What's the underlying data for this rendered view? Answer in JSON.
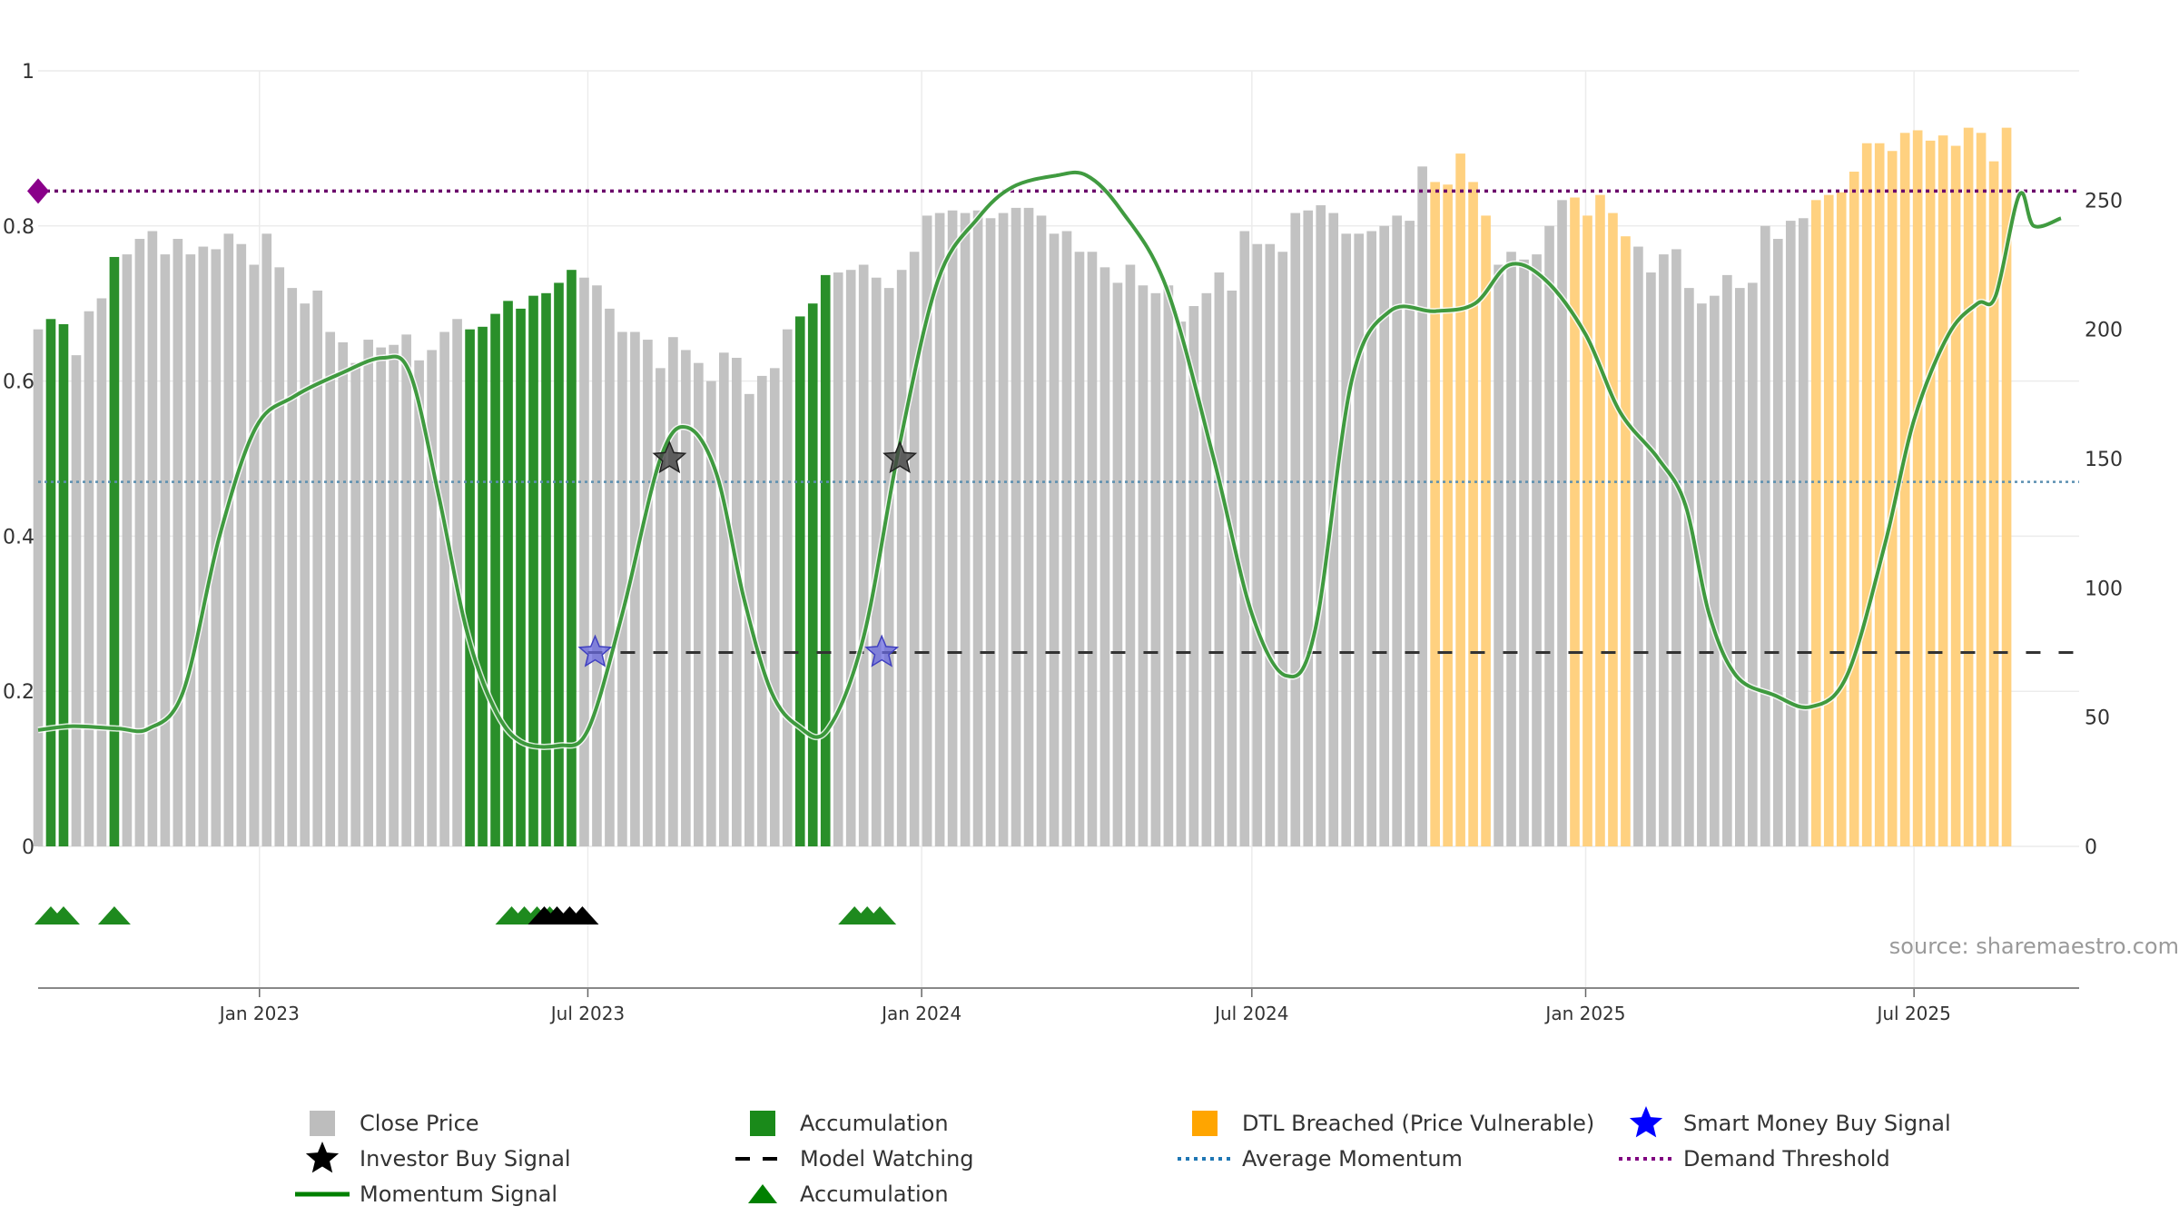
{
  "colors": {
    "close_price": "#c2c2c2",
    "accumulation": "#2a8f2a",
    "dtl_breached": "#ffd180",
    "momentum": "#1f8a1f",
    "model_watching": "#333333",
    "average_momentum": "#5b8fb0",
    "demand_threshold": "#6b006b",
    "smart_money": "#6a6adf",
    "investor": "#444444"
  },
  "source_text": "source: sharemaestro.com",
  "legend": [
    {
      "key": "close_price",
      "label": "Close Price",
      "symbol": "square",
      "color": "#bdbdbd"
    },
    {
      "key": "investor_buy",
      "label": "Investor Buy Signal",
      "symbol": "star",
      "color": "#000000"
    },
    {
      "key": "momentum",
      "label": "Momentum Signal",
      "symbol": "line",
      "color": "#008000"
    },
    {
      "key": "accumulation_bar",
      "label": "Accumulation",
      "symbol": "square",
      "color": "#1a8a1a"
    },
    {
      "key": "model_watching",
      "label": "Model Watching",
      "symbol": "dash",
      "color": "#000000"
    },
    {
      "key": "accumulation_marker",
      "label": "Accumulation",
      "symbol": "triangle",
      "color": "#008000"
    },
    {
      "key": "dtl_breached",
      "label": "DTL Breached (Price Vulnerable)",
      "symbol": "square",
      "color": "#ffa500"
    },
    {
      "key": "average_momentum",
      "label": "Average Momentum",
      "symbol": "dot",
      "color": "#1f77b4"
    },
    {
      "key": "smart_money",
      "label": "Smart Money Buy Signal",
      "symbol": "star",
      "color": "#0000ff"
    },
    {
      "key": "demand_threshold",
      "label": "Demand Threshold",
      "symbol": "dot",
      "color": "#800080"
    }
  ],
  "chart_data": {
    "type": "bar",
    "title": "",
    "left_axis": {
      "ylim": [
        0,
        1
      ],
      "ticks": [
        0,
        0.2,
        0.4,
        0.6,
        0.8,
        1
      ],
      "tick_labels": [
        "0",
        "0.2",
        "0.4",
        "0.6",
        "0.8",
        "1"
      ]
    },
    "right_axis": {
      "ylim": [
        0,
        300
      ],
      "ticks": [
        0,
        50,
        100,
        150,
        200,
        250
      ],
      "tick_labels": [
        "0",
        "50",
        "100",
        "150",
        "200",
        "250"
      ]
    },
    "x_range": [
      "2022-09-01",
      "2025-09-30"
    ],
    "x_ticks": [
      {
        "date": "2023-01-01",
        "label": "Jan 2023"
      },
      {
        "date": "2023-07-01",
        "label": "Jul 2023"
      },
      {
        "date": "2024-01-01",
        "label": "Jan 2024"
      },
      {
        "date": "2024-07-01",
        "label": "Jul 2024"
      },
      {
        "date": "2025-01-01",
        "label": "Jan 2025"
      },
      {
        "date": "2025-07-01",
        "label": "Jul 2025"
      }
    ],
    "series": [
      {
        "name": "Close Price",
        "axis": "right",
        "start_date": "2022-09-01",
        "interval_days": 7,
        "values": [
          200,
          204,
          202,
          190,
          207,
          212,
          228,
          229,
          235,
          238,
          229,
          235,
          229,
          232,
          231,
          237,
          233,
          225,
          237,
          224,
          216,
          210,
          215,
          199,
          195,
          187,
          196,
          193,
          194,
          198,
          188,
          192,
          199,
          204,
          200,
          201,
          206,
          211,
          208,
          213,
          214,
          218,
          223,
          220,
          217,
          208,
          199,
          199,
          196,
          185,
          197,
          192,
          187,
          180,
          191,
          189,
          175,
          182,
          185,
          200,
          205,
          210,
          221,
          222,
          223,
          225,
          220,
          216,
          223,
          230,
          244,
          245,
          246,
          245,
          246,
          243,
          245,
          247,
          247,
          244,
          237,
          238,
          230,
          230,
          224,
          218,
          225,
          217,
          214,
          217,
          203,
          209,
          214,
          222,
          215,
          238,
          233,
          233,
          230,
          245,
          246,
          248,
          245,
          237,
          237,
          238,
          240,
          244,
          242,
          263,
          257,
          256,
          268,
          257,
          244,
          225,
          230,
          227,
          229,
          240,
          250,
          251,
          244,
          252,
          245,
          236,
          232,
          222,
          229,
          231,
          216,
          210,
          213,
          221,
          216,
          218,
          240,
          235,
          242,
          243,
          250,
          252,
          253,
          261,
          272,
          272,
          269,
          276,
          277,
          273,
          275,
          271,
          278,
          276,
          265,
          278
        ],
        "accumulation_indices": [
          1,
          2,
          6,
          34,
          35,
          36,
          37,
          38,
          39,
          40,
          41,
          42,
          60,
          61,
          62
        ],
        "dtl_breached_ranges": [
          [
            110,
            114
          ],
          [
            121,
            123
          ],
          [
            124,
            125
          ],
          [
            140,
            155
          ]
        ]
      },
      {
        "name": "Momentum Signal",
        "axis": "left",
        "type": "line",
        "points": [
          [
            "2022-09-01",
            0.15
          ],
          [
            "2022-09-20",
            0.155
          ],
          [
            "2022-10-15",
            0.152
          ],
          [
            "2022-11-01",
            0.152
          ],
          [
            "2022-11-20",
            0.2
          ],
          [
            "2022-12-10",
            0.4
          ],
          [
            "2022-12-30",
            0.54
          ],
          [
            "2023-01-20",
            0.58
          ],
          [
            "2023-02-15",
            0.61
          ],
          [
            "2023-03-10",
            0.63
          ],
          [
            "2023-03-25",
            0.61
          ],
          [
            "2023-04-10",
            0.45
          ],
          [
            "2023-04-25",
            0.28
          ],
          [
            "2023-05-10",
            0.18
          ],
          [
            "2023-05-25",
            0.135
          ],
          [
            "2023-06-15",
            0.13
          ],
          [
            "2023-07-01",
            0.15
          ],
          [
            "2023-07-20",
            0.3
          ],
          [
            "2023-08-10",
            0.5
          ],
          [
            "2023-08-25",
            0.54
          ],
          [
            "2023-09-10",
            0.48
          ],
          [
            "2023-09-25",
            0.32
          ],
          [
            "2023-10-10",
            0.2
          ],
          [
            "2023-10-25",
            0.155
          ],
          [
            "2023-11-10",
            0.15
          ],
          [
            "2023-11-30",
            0.27
          ],
          [
            "2023-12-20",
            0.52
          ],
          [
            "2024-01-10",
            0.73
          ],
          [
            "2024-02-01",
            0.81
          ],
          [
            "2024-02-20",
            0.85
          ],
          [
            "2024-03-15",
            0.865
          ],
          [
            "2024-04-01",
            0.865
          ],
          [
            "2024-04-20",
            0.82
          ],
          [
            "2024-05-15",
            0.72
          ],
          [
            "2024-06-10",
            0.5
          ],
          [
            "2024-07-01",
            0.3
          ],
          [
            "2024-07-20",
            0.22
          ],
          [
            "2024-08-05",
            0.28
          ],
          [
            "2024-08-25",
            0.6
          ],
          [
            "2024-09-15",
            0.69
          ],
          [
            "2024-10-10",
            0.69
          ],
          [
            "2024-11-01",
            0.7
          ],
          [
            "2024-11-20",
            0.75
          ],
          [
            "2024-12-10",
            0.73
          ],
          [
            "2025-01-01",
            0.66
          ],
          [
            "2025-01-20",
            0.56
          ],
          [
            "2025-02-10",
            0.5
          ],
          [
            "2025-02-25",
            0.44
          ],
          [
            "2025-03-10",
            0.3
          ],
          [
            "2025-03-25",
            0.22
          ],
          [
            "2025-04-15",
            0.195
          ],
          [
            "2025-05-05",
            0.18
          ],
          [
            "2025-05-25",
            0.22
          ],
          [
            "2025-06-15",
            0.39
          ],
          [
            "2025-07-01",
            0.55
          ],
          [
            "2025-07-20",
            0.66
          ],
          [
            "2025-08-05",
            0.7
          ],
          [
            "2025-08-15",
            0.71
          ],
          [
            "2025-08-28",
            0.84
          ],
          [
            "2025-09-05",
            0.8
          ],
          [
            "2025-09-20",
            0.81
          ]
        ]
      },
      {
        "name": "Average Momentum",
        "axis": "left",
        "type": "hline",
        "value": 0.47
      },
      {
        "name": "Demand Threshold",
        "axis": "left",
        "type": "hline",
        "value": 0.845
      },
      {
        "name": "Model Watching",
        "axis": "left",
        "type": "hline",
        "value": 0.25,
        "start_date": "2023-07-01"
      },
      {
        "name": "Smart Money Buy Signal",
        "axis": "left",
        "type": "markers",
        "points": [
          [
            "2023-07-05",
            0.25
          ],
          [
            "2023-12-10",
            0.25
          ]
        ]
      },
      {
        "name": "Investor Buy Signal",
        "axis": "left",
        "type": "markers",
        "points": [
          [
            "2023-08-15",
            0.5
          ],
          [
            "2023-12-20",
            0.5
          ]
        ]
      },
      {
        "name": "Accumulation",
        "type": "triangles",
        "green_dates": [
          "2022-09-08",
          "2022-09-15",
          "2022-10-13",
          "2023-05-20",
          "2023-05-27",
          "2023-06-03",
          "2023-06-10",
          "2023-11-25",
          "2023-12-02",
          "2023-12-09"
        ],
        "black_dates": [
          "2023-06-07",
          "2023-06-14",
          "2023-06-21",
          "2023-06-28"
        ]
      }
    ]
  }
}
